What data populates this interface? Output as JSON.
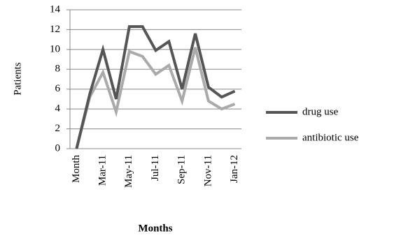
{
  "chart_data": {
    "type": "line",
    "x_label": "Months",
    "y_label": "Patients",
    "categories": [
      "Month",
      null,
      "Mar-11",
      null,
      "May-11",
      null,
      "Jul-11",
      null,
      "Sep-11",
      null,
      "Nov-11",
      null,
      "Jan-12"
    ],
    "series": [
      {
        "name": "drug use",
        "color": "#555555",
        "values": [
          0,
          5.5,
          10,
          5,
          12.3,
          12.3,
          9.9,
          10.8,
          6,
          11.6,
          6.2,
          5.2,
          5.8
        ]
      },
      {
        "name": "antibiotic use",
        "color": "#aaaaaa",
        "values": [
          0,
          5.2,
          7.7,
          3.7,
          9.8,
          9.3,
          7.5,
          8.4,
          4.8,
          10.2,
          4.8,
          4.0,
          4.5
        ]
      }
    ],
    "ylim": [
      0,
      14
    ],
    "yticks": [
      0,
      2,
      4,
      6,
      8,
      10,
      12,
      14
    ],
    "grid": true,
    "legend": "right"
  }
}
